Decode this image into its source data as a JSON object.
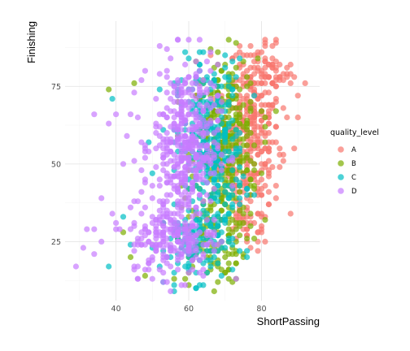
{
  "chart_data": {
    "type": "scatter",
    "xlabel": "ShortPassing",
    "ylabel": "Finishing",
    "xlim": [
      26,
      96
    ],
    "ylim": [
      6,
      96
    ],
    "x_ticks": [
      40,
      60,
      80
    ],
    "y_ticks": [
      25,
      50,
      75
    ],
    "grid": true,
    "legend": {
      "title": "quality_level",
      "placement": "right"
    },
    "point_opacity": 0.7,
    "series": [
      {
        "name": "A",
        "color": "#F8766D",
        "clusters": [
          {
            "cx": 77,
            "cy": 58,
            "sx": 4.2,
            "sy": 12,
            "n": 260
          },
          {
            "cx": 80,
            "cy": 78,
            "sx": 4.5,
            "sy": 5,
            "n": 90
          },
          {
            "cx": 76,
            "cy": 32,
            "sx": 3.5,
            "sy": 6,
            "n": 45
          }
        ],
        "points": [
          {
            "x": 81,
            "y": 89
          },
          {
            "x": 87,
            "y": 81
          },
          {
            "x": 92,
            "y": 76
          },
          {
            "x": 89,
            "y": 78
          },
          {
            "x": 85,
            "y": 49
          },
          {
            "x": 79,
            "y": 25
          },
          {
            "x": 81,
            "y": 25
          },
          {
            "x": 87,
            "y": 65
          },
          {
            "x": 66,
            "y": 85
          },
          {
            "x": 74,
            "y": 86
          },
          {
            "x": 83,
            "y": 84
          },
          {
            "x": 90,
            "y": 72
          }
        ]
      },
      {
        "name": "B",
        "color": "#7CAE00",
        "clusters": [
          {
            "cx": 70,
            "cy": 56,
            "sx": 4.5,
            "sy": 14,
            "n": 320
          },
          {
            "cx": 66,
            "cy": 24,
            "sx": 5,
            "sy": 6,
            "n": 90
          }
        ],
        "points": [
          {
            "x": 38,
            "y": 74
          },
          {
            "x": 45,
            "y": 76
          },
          {
            "x": 42,
            "y": 28
          },
          {
            "x": 44,
            "y": 20
          },
          {
            "x": 48,
            "y": 14
          },
          {
            "x": 56,
            "y": 13
          },
          {
            "x": 60,
            "y": 11
          },
          {
            "x": 62,
            "y": 83
          },
          {
            "x": 66,
            "y": 72
          },
          {
            "x": 78,
            "y": 48
          },
          {
            "x": 77,
            "y": 40
          },
          {
            "x": 73,
            "y": 18
          }
        ]
      },
      {
        "name": "C",
        "color": "#00BFC4",
        "clusters": [
          {
            "cx": 66,
            "cy": 55,
            "sx": 4.5,
            "sy": 14,
            "n": 320
          },
          {
            "cx": 62,
            "cy": 24,
            "sx": 5,
            "sy": 6,
            "n": 110
          }
        ],
        "points": [
          {
            "x": 39,
            "y": 71
          },
          {
            "x": 38,
            "y": 17
          },
          {
            "x": 42,
            "y": 33
          },
          {
            "x": 50,
            "y": 47
          },
          {
            "x": 52,
            "y": 74
          },
          {
            "x": 44,
            "y": 24
          },
          {
            "x": 66,
            "y": 17
          },
          {
            "x": 70,
            "y": 37
          },
          {
            "x": 73,
            "y": 53
          },
          {
            "x": 53,
            "y": 12
          },
          {
            "x": 56,
            "y": 76
          }
        ]
      },
      {
        "name": "D",
        "color": "#C77CFF",
        "clusters": [
          {
            "cx": 59,
            "cy": 56,
            "sx": 4.5,
            "sy": 13,
            "n": 420
          },
          {
            "cx": 56,
            "cy": 26,
            "sx": 6,
            "sy": 6,
            "n": 200
          }
        ],
        "points": [
          {
            "x": 29,
            "y": 17
          },
          {
            "x": 31,
            "y": 23
          },
          {
            "x": 32,
            "y": 29
          },
          {
            "x": 34,
            "y": 29
          },
          {
            "x": 36,
            "y": 25
          },
          {
            "x": 34,
            "y": 21
          },
          {
            "x": 39,
            "y": 34
          },
          {
            "x": 40,
            "y": 31
          },
          {
            "x": 38,
            "y": 63
          },
          {
            "x": 34,
            "y": 66
          },
          {
            "x": 40,
            "y": 66
          },
          {
            "x": 44,
            "y": 66
          },
          {
            "x": 46,
            "y": 65
          },
          {
            "x": 48,
            "y": 45
          },
          {
            "x": 46,
            "y": 38
          },
          {
            "x": 45,
            "y": 51
          },
          {
            "x": 43,
            "y": 59
          },
          {
            "x": 42,
            "y": 50
          },
          {
            "x": 41,
            "y": 29
          },
          {
            "x": 53,
            "y": 15
          },
          {
            "x": 55,
            "y": 9
          },
          {
            "x": 59,
            "y": 11
          },
          {
            "x": 64,
            "y": 14
          },
          {
            "x": 50,
            "y": 19
          },
          {
            "x": 45,
            "y": 16
          },
          {
            "x": 48,
            "y": 30
          },
          {
            "x": 60,
            "y": 78
          }
        ]
      }
    ]
  }
}
